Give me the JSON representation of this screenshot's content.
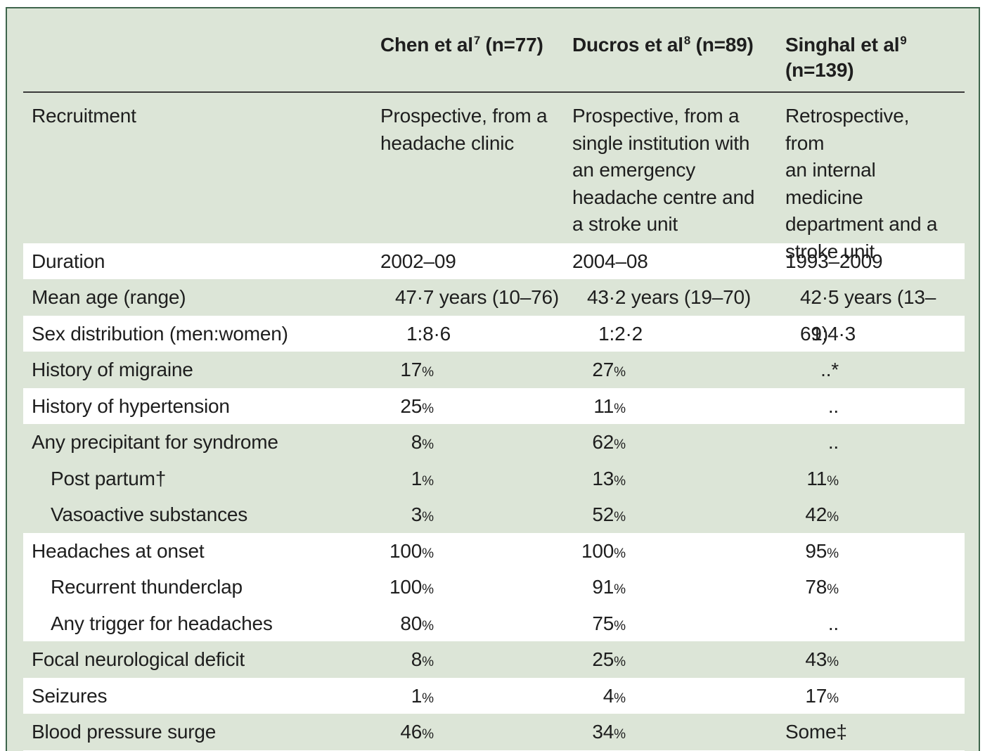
{
  "table": {
    "columns": [
      {
        "name": "Chen et al",
        "ref": "7",
        "n": "(n=77)"
      },
      {
        "name": "Ducros et al",
        "ref": "8",
        "n": "(n=89)"
      },
      {
        "name": "Singhal et al",
        "ref": "9",
        "n": "(n=139)"
      }
    ],
    "rows": [
      {
        "label": "Recruitment",
        "indent": false,
        "band": "green",
        "tall": true,
        "values": [
          "Prospective, from a\nheadache clinic",
          "Prospective, from a\nsingle institution with\nan emergency\nheadache centre and\na stroke unit",
          "Retrospective, from\nan internal medicine\ndepartment and a\nstroke unit"
        ]
      },
      {
        "label": "Duration",
        "indent": false,
        "band": "white",
        "tall": false,
        "values": [
          "2002–09",
          "2004–08",
          "1993–2009"
        ]
      },
      {
        "label": "Mean age (range)",
        "indent": false,
        "band": "green",
        "tall": false,
        "values": [
          "47·7 years (10–76)",
          "43·2 years (19–70)",
          "42·5 years (13–69)"
        ]
      },
      {
        "label": "Sex distribution (men:women)",
        "indent": false,
        "band": "white",
        "tall": false,
        "values": [
          "1:8·6",
          "1:2·2",
          "1:4·3"
        ]
      },
      {
        "label": "History of migraine",
        "indent": false,
        "band": "green",
        "tall": false,
        "values": [
          "17%",
          "27%",
          "..*"
        ]
      },
      {
        "label": "History of hypertension",
        "indent": false,
        "band": "white",
        "tall": false,
        "values": [
          "25%",
          "11%",
          ".."
        ]
      },
      {
        "label": "Any precipitant for syndrome",
        "indent": false,
        "band": "green",
        "tall": false,
        "values": [
          "8%",
          "62%",
          ".."
        ]
      },
      {
        "label": "Post partum†",
        "indent": true,
        "band": "green",
        "tall": false,
        "values": [
          "1%",
          "13%",
          "11%"
        ]
      },
      {
        "label": "Vasoactive substances",
        "indent": true,
        "band": "green",
        "tall": false,
        "values": [
          "3%",
          "52%",
          "42%"
        ]
      },
      {
        "label": "Headaches at onset",
        "indent": false,
        "band": "white",
        "tall": false,
        "values": [
          "100%",
          "100%",
          "95%"
        ]
      },
      {
        "label": "Recurrent thunderclap",
        "indent": true,
        "band": "white",
        "tall": false,
        "values": [
          "100%",
          "91%",
          "78%"
        ]
      },
      {
        "label": "Any trigger for headaches",
        "indent": true,
        "band": "white",
        "tall": false,
        "values": [
          "80%",
          "75%",
          ".."
        ]
      },
      {
        "label": "Focal neurological deficit",
        "indent": false,
        "band": "green",
        "tall": false,
        "values": [
          "8%",
          "25%",
          "43%"
        ]
      },
      {
        "label": "Seizures",
        "indent": false,
        "band": "white",
        "tall": false,
        "values": [
          "1%",
          "4%",
          "17%"
        ]
      },
      {
        "label": "Blood pressure surge",
        "indent": false,
        "band": "green",
        "tall": false,
        "values": [
          "46%",
          "34%",
          "Some‡"
        ]
      }
    ],
    "colors": {
      "panel_background": "#dce5d7",
      "panel_border": "#3e654c",
      "white_band": "#ffffff",
      "rule": "#3a3a3a",
      "text": "#1e1e1e"
    }
  }
}
